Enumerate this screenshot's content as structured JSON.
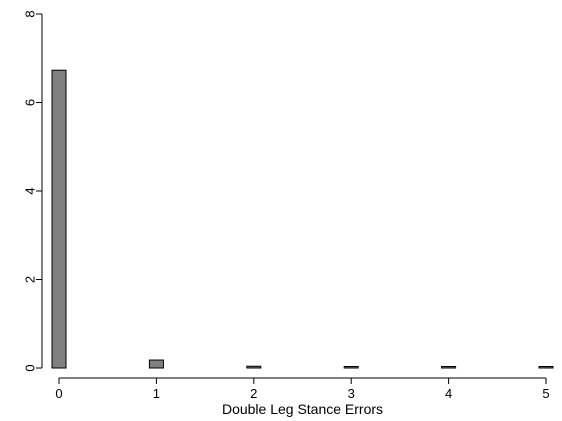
{
  "chart_data": {
    "type": "bar",
    "title": "",
    "xlabel": "Double Leg Stance Errors",
    "ylabel": "",
    "x": [
      0,
      1,
      2,
      3,
      4,
      5
    ],
    "values": [
      6.73,
      0.18,
      0.04,
      0.03,
      0.015,
      0.01
    ],
    "xlim": [
      0,
      5
    ],
    "ylim": [
      0,
      8
    ],
    "xticks": [
      0,
      1,
      2,
      3,
      4,
      5
    ],
    "yticks": [
      0,
      2,
      4,
      6,
      8
    ],
    "grid": false,
    "legend": "none",
    "colors": {
      "bar_fill": "#808080",
      "bar_stroke": "#000000",
      "axis": "#000000"
    }
  }
}
